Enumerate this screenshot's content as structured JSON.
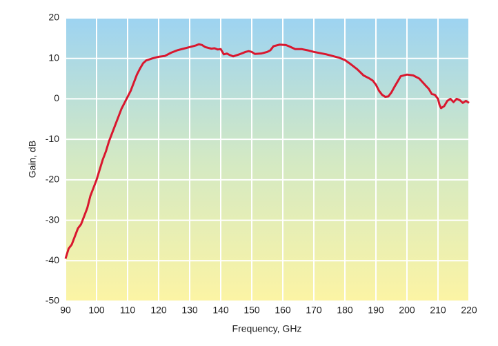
{
  "chart_data": {
    "type": "line",
    "x_label": "Frequency, GHz",
    "y_label": "Gain, dB",
    "xlim": [
      90,
      220
    ],
    "xticks": [
      90,
      100,
      110,
      120,
      130,
      140,
      150,
      160,
      170,
      180,
      190,
      200,
      210,
      220
    ],
    "ylim": [
      -50,
      20
    ],
    "yticks": [
      -50,
      -40,
      -30,
      -20,
      -10,
      0,
      10,
      20
    ],
    "grid": true,
    "x": [
      90,
      91,
      92,
      93,
      94,
      95,
      96,
      97,
      98,
      99,
      100,
      101,
      102,
      103,
      104,
      105,
      106,
      107,
      108,
      109,
      110,
      111,
      112,
      113,
      114,
      115,
      116,
      118,
      120,
      122,
      124,
      126,
      128,
      130,
      132,
      133,
      134,
      135,
      137,
      138,
      139,
      140,
      141,
      142,
      143,
      144,
      146,
      148,
      149,
      150,
      151,
      153,
      155,
      156,
      157,
      159,
      161,
      162,
      164,
      166,
      168,
      170,
      172,
      174,
      176,
      178,
      180,
      182,
      184,
      186,
      188,
      189,
      190,
      191,
      192,
      193,
      194,
      195,
      196,
      197,
      198,
      200,
      202,
      204,
      206,
      207,
      208,
      209,
      210,
      210.5,
      211,
      212,
      213,
      214,
      215,
      216,
      217,
      218,
      219,
      220
    ],
    "series": [
      {
        "name": "Gain",
        "color": "#d9172e",
        "values": [
          -39.5,
          -37,
          -36,
          -34,
          -32,
          -31,
          -29,
          -27,
          -24,
          -22,
          -20,
          -17.5,
          -15,
          -13,
          -10.5,
          -8.5,
          -6.5,
          -4.5,
          -2.5,
          -1,
          0.5,
          2,
          4,
          6,
          7.5,
          8.8,
          9.5,
          10,
          10.4,
          10.6,
          11.4,
          12,
          12.4,
          12.8,
          13.2,
          13.5,
          13.3,
          12.8,
          12.4,
          12.5,
          12.2,
          12.3,
          11,
          11.2,
          10.8,
          10.5,
          11,
          11.6,
          11.8,
          11.6,
          11.1,
          11.2,
          11.6,
          12,
          13,
          13.4,
          13.3,
          13,
          12.3,
          12.3,
          12,
          11.6,
          11.3,
          11,
          10.6,
          10.2,
          9.6,
          8.5,
          7.3,
          5.8,
          5,
          4.5,
          3.5,
          2,
          1,
          0.5,
          0.6,
          1.6,
          3,
          4.3,
          5.6,
          6,
          5.8,
          5,
          3.3,
          2.5,
          1.2,
          1,
          0,
          -1.5,
          -2.3,
          -1.8,
          -0.5,
          0,
          -0.8,
          0,
          -0.3,
          -1,
          -0.5,
          -1
        ]
      }
    ]
  }
}
